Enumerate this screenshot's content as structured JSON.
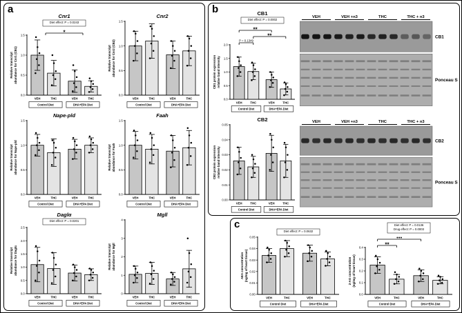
{
  "panels": {
    "a": "a",
    "b": "b",
    "c": "c"
  },
  "colors": {
    "bar_fills": [
      "#c6c6c6",
      "#e4e4e4",
      "#c6c6c6",
      "#e4e4e4"
    ],
    "bar_stroke": "#000000",
    "dot_fill": "#000000",
    "blot_band_bg": "#9a9a9a",
    "blot_band": "#141414",
    "ponceau_bg": "#adadad",
    "ponceau_band": "#757575"
  },
  "chart_data": [
    {
      "id": "cnr1",
      "type": "bar",
      "title": "Cnr1",
      "title_italic": true,
      "p_box": [
        "Diet effect: P = 0.0243"
      ],
      "ylabel": [
        "Relative transcript",
        "abundance for Cnr1 (CB1)"
      ],
      "ylim": [
        0,
        1.5
      ],
      "yticks": [
        0,
        0.5,
        1,
        1.5
      ],
      "ytick_decimals": 1,
      "x_labels": [
        "VEH",
        "THC",
        "VEH",
        "THC"
      ],
      "groups": [
        "Control Diet",
        "DHA+EPA Diet"
      ],
      "values": [
        1.0,
        0.55,
        0.35,
        0.22
      ],
      "errors": [
        0.38,
        0.32,
        0.28,
        0.14
      ],
      "dots": [
        [
          0.55,
          0.75,
          0.9,
          1.05,
          1.2,
          1.45
        ],
        [
          0.25,
          0.4,
          0.5,
          0.6,
          0.8,
          1.0
        ],
        [
          0.1,
          0.2,
          0.3,
          0.45,
          0.6,
          0.75
        ],
        [
          0.08,
          0.15,
          0.2,
          0.28,
          0.35,
          0.42
        ]
      ],
      "brackets": [
        {
          "from": 0.5,
          "to": 2.5,
          "label": "*",
          "level": 1
        }
      ]
    },
    {
      "id": "cnr2",
      "type": "bar",
      "title": "Cnr2",
      "title_italic": true,
      "p_box": null,
      "ylabel": [
        "Relative transcript",
        "abundance for Cnr2 (CB2)"
      ],
      "ylim": [
        0,
        1.5
      ],
      "yticks": [
        0,
        0.5,
        1,
        1.5
      ],
      "ytick_decimals": 1,
      "x_labels": [
        "VEH",
        "THC",
        "VEH",
        "THC"
      ],
      "groups": [
        "Control Diet",
        "DHA+EPA Diet"
      ],
      "values": [
        1.0,
        1.1,
        0.82,
        0.9
      ],
      "errors": [
        0.3,
        0.35,
        0.28,
        0.3
      ],
      "dots": [
        [
          0.7,
          0.85,
          1.0,
          1.1,
          1.25,
          1.3
        ],
        [
          0.75,
          0.9,
          1.05,
          1.2,
          1.35,
          1.4
        ],
        [
          0.55,
          0.7,
          0.8,
          0.9,
          1.0,
          1.1
        ],
        [
          0.6,
          0.75,
          0.9,
          1.0,
          1.15,
          1.2
        ]
      ],
      "brackets": []
    },
    {
      "id": "napepld",
      "type": "bar",
      "title": "Nape-pld",
      "title_italic": true,
      "p_box": null,
      "ylabel": [
        "Relative transcript",
        "abundance for Nape-pld"
      ],
      "ylim": [
        0,
        1.5
      ],
      "yticks": [
        0,
        0.5,
        1,
        1.5
      ],
      "ytick_decimals": 1,
      "x_labels": [
        "VEH",
        "THC",
        "VEH",
        "THC"
      ],
      "groups": [
        "Control Diet",
        "DHA+EPA Diet"
      ],
      "values": [
        1.0,
        0.85,
        0.92,
        1.0
      ],
      "errors": [
        0.22,
        0.28,
        0.2,
        0.15
      ],
      "dots": [
        [
          0.8,
          0.9,
          1.0,
          1.05,
          1.15,
          1.25
        ],
        [
          0.6,
          0.75,
          0.85,
          0.95,
          1.05,
          1.1
        ],
        [
          0.72,
          0.85,
          0.92,
          1.0,
          1.08,
          1.15
        ],
        [
          0.85,
          0.92,
          1.0,
          1.05,
          1.12,
          1.18
        ]
      ],
      "brackets": []
    },
    {
      "id": "faah",
      "type": "bar",
      "title": "Faah",
      "title_italic": true,
      "p_box": null,
      "ylabel": [
        "Relative transcript",
        "abundance for Faah"
      ],
      "ylim": [
        0,
        1.5
      ],
      "yticks": [
        0,
        0.5,
        1,
        1.5
      ],
      "ytick_decimals": 1,
      "x_labels": [
        "VEH",
        "THC",
        "VEH",
        "THC"
      ],
      "groups": [
        "Control Diet",
        "DHA+EPA Diet"
      ],
      "values": [
        1.0,
        0.92,
        0.88,
        0.95
      ],
      "errors": [
        0.28,
        0.3,
        0.32,
        0.35
      ],
      "dots": [
        [
          0.75,
          0.88,
          1.0,
          1.1,
          1.2,
          1.3
        ],
        [
          0.65,
          0.8,
          0.92,
          1.0,
          1.15,
          1.25
        ],
        [
          0.55,
          0.7,
          0.85,
          0.95,
          1.1,
          1.2
        ],
        [
          0.6,
          0.78,
          0.95,
          1.05,
          1.2,
          1.35
        ]
      ],
      "brackets": []
    },
    {
      "id": "dagla",
      "type": "bar",
      "title": "Daglα",
      "title_italic": true,
      "p_box": [
        "Diet effect: P = 0.0201"
      ],
      "ylabel": [
        "Relative transcript",
        "abundance for Daglα"
      ],
      "ylim": [
        0,
        2.5
      ],
      "yticks": [
        0,
        0.5,
        1,
        1.5,
        2,
        2.5
      ],
      "ytick_decimals": 1,
      "x_labels": [
        "VEH",
        "THC",
        "VEH",
        "THC"
      ],
      "groups": [
        "Control Diet",
        "DHA+EPA Diet"
      ],
      "values": [
        1.1,
        0.95,
        0.78,
        0.72
      ],
      "errors": [
        0.65,
        0.6,
        0.3,
        0.22
      ],
      "dots": [
        [
          0.5,
          0.8,
          1.05,
          1.25,
          1.6,
          1.8
        ],
        [
          0.4,
          0.65,
          0.9,
          1.1,
          1.35,
          1.55
        ],
        [
          0.5,
          0.65,
          0.78,
          0.9,
          1.0,
          1.1
        ],
        [
          0.5,
          0.6,
          0.72,
          0.8,
          0.9,
          0.95
        ]
      ],
      "brackets": []
    },
    {
      "id": "mgll",
      "type": "bar",
      "title": "Mgll",
      "title_italic": true,
      "p_box": null,
      "ylabel": [
        "Relative transcript",
        "abundance for Mgll"
      ],
      "ylim": [
        0,
        4
      ],
      "yticks": [
        0,
        1,
        2,
        3,
        4
      ],
      "ytick_decimals": 0,
      "x_labels": [
        "VEH",
        "THC",
        "VEH",
        "THC"
      ],
      "groups": [
        "Control Diet",
        "DHA+EPA Diet"
      ],
      "values": [
        1.05,
        1.1,
        0.8,
        1.35
      ],
      "errors": [
        0.45,
        0.6,
        0.35,
        1.0
      ],
      "dots": [
        [
          0.6,
          0.85,
          1.0,
          1.15,
          1.35,
          1.5
        ],
        [
          0.55,
          0.8,
          1.05,
          1.25,
          1.5,
          1.7
        ],
        [
          0.5,
          0.65,
          0.8,
          0.9,
          1.05,
          1.15
        ],
        [
          0.6,
          0.9,
          1.2,
          1.6,
          2.2,
          3.0
        ]
      ],
      "brackets": []
    },
    {
      "id": "cb1",
      "type": "bar",
      "title": "CB1",
      "title_italic": false,
      "p_box": [
        "Diet effect: P = 0.0002"
      ],
      "ylabel": [
        "CB1 protein expression",
        "relative band intensity"
      ],
      "ylim": [
        0,
        2
      ],
      "yticks": [
        0,
        0.5,
        1,
        1.5,
        2
      ],
      "ytick_decimals": 1,
      "x_labels": [
        "VEH",
        "THC",
        "VEH",
        "THC"
      ],
      "groups": [
        "Control Diet",
        "DHA+EPA Diet"
      ],
      "values": [
        1.2,
        1.02,
        0.72,
        0.38
      ],
      "errors": [
        0.35,
        0.3,
        0.28,
        0.22
      ],
      "dots": [
        [
          0.85,
          1.0,
          1.15,
          1.25,
          1.4,
          1.55
        ],
        [
          0.7,
          0.85,
          1.0,
          1.1,
          1.25,
          1.35
        ],
        [
          0.45,
          0.6,
          0.7,
          0.8,
          0.9,
          1.0
        ],
        [
          0.15,
          0.28,
          0.38,
          0.45,
          0.55,
          0.62
        ]
      ],
      "brackets": [
        {
          "from": 0,
          "to": 2,
          "label": "**",
          "level": 3
        },
        {
          "from": 1,
          "to": 3,
          "label": "**",
          "level": 2
        },
        {
          "from": 0,
          "to": 1,
          "label": "P = 0.1349",
          "level": 1
        }
      ]
    },
    {
      "id": "cb2",
      "type": "bar",
      "title": "CB2",
      "title_italic": false,
      "p_box": null,
      "ylabel": [
        "CB2 protein expression",
        "relative band intensity"
      ],
      "ylim": [
        0,
        0.05
      ],
      "yticks": [
        0,
        0.01,
        0.02,
        0.03,
        0.04,
        0.05
      ],
      "ytick_decimals": 2,
      "x_labels": [
        "VEH",
        "THC",
        "VEH",
        "THC"
      ],
      "groups": [
        "Control Diet",
        "DHA+EPA Diet"
      ],
      "values": [
        0.026,
        0.022,
        0.031,
        0.026
      ],
      "errors": [
        0.009,
        0.007,
        0.012,
        0.011
      ],
      "dots": [
        [
          0.017,
          0.021,
          0.025,
          0.028,
          0.032,
          0.035
        ],
        [
          0.015,
          0.018,
          0.021,
          0.024,
          0.027,
          0.03
        ],
        [
          0.02,
          0.025,
          0.03,
          0.035,
          0.04,
          0.044
        ],
        [
          0.015,
          0.02,
          0.025,
          0.03,
          0.035,
          0.038
        ]
      ],
      "brackets": []
    },
    {
      "id": "aea",
      "type": "bar",
      "title": null,
      "title_italic": false,
      "p_box": [
        "Diet effect: P = 0.0632"
      ],
      "ylabel": [
        "AEA concentration",
        "(ng/mg of heart tissue)"
      ],
      "ylim": [
        0,
        0.05
      ],
      "yticks": [
        0,
        0.01,
        0.02,
        0.03,
        0.04,
        0.05
      ],
      "ytick_decimals": 2,
      "x_labels": [
        "VEH",
        "THC",
        "VEH",
        "THC"
      ],
      "groups": [
        "Control Diet",
        "DHA+EPA Diet"
      ],
      "values": [
        0.034,
        0.04,
        0.036,
        0.031
      ],
      "errors": [
        0.006,
        0.007,
        0.007,
        0.006
      ],
      "dots": [
        [
          0.028,
          0.031,
          0.034,
          0.036,
          0.039,
          0.041
        ],
        [
          0.033,
          0.036,
          0.039,
          0.042,
          0.045,
          0.047
        ],
        [
          0.029,
          0.033,
          0.036,
          0.038,
          0.041,
          0.043
        ],
        [
          0.025,
          0.028,
          0.031,
          0.033,
          0.036,
          0.038
        ]
      ],
      "brackets": []
    },
    {
      "id": "2ag",
      "type": "bar",
      "title": null,
      "title_italic": false,
      "p_box": [
        "Diet effect: P = 0.0136",
        "Drug effect: P = 0.0003"
      ],
      "ylabel": [
        "2-AG concentration",
        "(ng/mg of heart tissue)"
      ],
      "ylim": [
        0,
        0.4
      ],
      "yticks": [
        0,
        0.1,
        0.2,
        0.3,
        0.4
      ],
      "ytick_decimals": 1,
      "x_labels": [
        "VEH",
        "THC",
        "VEH",
        "THC"
      ],
      "groups": [
        "Control Diet",
        "DHA+EPA Diet"
      ],
      "values": [
        0.25,
        0.13,
        0.16,
        0.12
      ],
      "errors": [
        0.07,
        0.04,
        0.05,
        0.03
      ],
      "dots": [
        [
          0.18,
          0.21,
          0.24,
          0.27,
          0.3,
          0.33
        ],
        [
          0.09,
          0.11,
          0.13,
          0.15,
          0.17,
          0.19
        ],
        [
          0.11,
          0.13,
          0.16,
          0.18,
          0.2,
          0.22
        ],
        [
          0.09,
          0.1,
          0.12,
          0.13,
          0.15,
          0.16
        ]
      ],
      "brackets": [
        {
          "from": 0,
          "to": 1,
          "label": "**",
          "level": 1
        },
        {
          "from": 0,
          "to": 2,
          "label": "●●●",
          "level": 2
        }
      ]
    }
  ],
  "blots": [
    {
      "id": "cb1",
      "lane_labels": [
        "VEH",
        "VEH +n3",
        "THC",
        "THC + n3"
      ],
      "lanes_per_group": 3,
      "rows": [
        {
          "label": "CB1",
          "ponceau": false
        },
        {
          "label": "Ponceau S",
          "ponceau": true
        }
      ],
      "band_strengths": [
        1,
        1,
        1,
        0.95,
        0.9,
        0.95,
        0.85,
        0.9,
        0.85,
        0.45,
        0.5,
        0.4
      ]
    },
    {
      "id": "cb2",
      "lane_labels": [
        "VEH",
        "VEH +n3",
        "THC",
        "THC + n3"
      ],
      "lanes_per_group": 3,
      "rows": [
        {
          "label": "CB2",
          "ponceau": false
        },
        {
          "label": "Ponceau S",
          "ponceau": true
        }
      ],
      "band_strengths": [
        0.85,
        0.8,
        0.85,
        0.8,
        0.85,
        0.8,
        0.85,
        0.8,
        0.85,
        0.8,
        0.85,
        0.8
      ]
    }
  ]
}
